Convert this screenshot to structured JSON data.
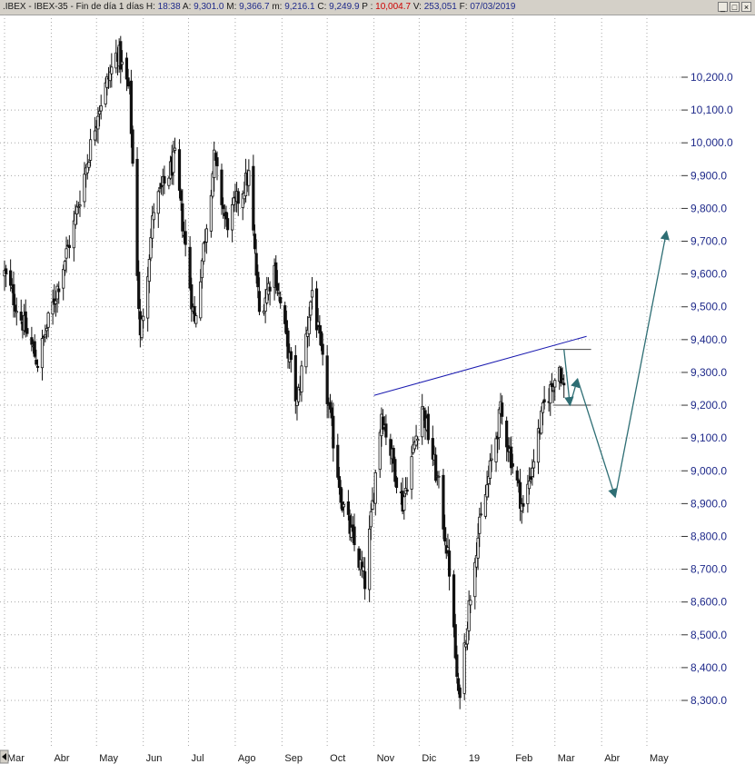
{
  "header": {
    "symbol": ".IBEX - IBEX-35 - Fin de día 1 días",
    "fields": [
      {
        "label": "H:",
        "value": "18:38"
      },
      {
        "label": "A:",
        "value": "9,301.0"
      },
      {
        "label": "M:",
        "value": "9,366.7"
      },
      {
        "label": "m:",
        "value": "9,216.1"
      },
      {
        "label": "C:",
        "value": "9,249.9"
      },
      {
        "label": "P :",
        "value": "10,004.7"
      },
      {
        "label": "V:",
        "value": "253,051"
      },
      {
        "label": "F:",
        "value": "07/03/2019"
      }
    ],
    "window_buttons": [
      "_",
      "□",
      "×"
    ]
  },
  "chart_data": {
    "type": "candlestick",
    "title": "",
    "y_axis": {
      "position": "right",
      "range": [
        8230,
        10350
      ],
      "ticks": [
        "8,300.0",
        "8,400.0",
        "8,500.0",
        "8,600.0",
        "8,700.0",
        "8,800.0",
        "8,900.0",
        "9,000.0",
        "9,100.0",
        "9,200.0",
        "9,300.0",
        "9,400.0",
        "9,500.0",
        "9,600.0",
        "9,700.0",
        "9,800.0",
        "9,900.0",
        "10,000.0",
        "10,100.0",
        "10,200.0"
      ]
    },
    "x_axis": {
      "labels": [
        "Mar",
        "Abr",
        "May",
        "Jun",
        "Jul",
        "Ago",
        "Sep",
        "Oct",
        "Nov",
        "Dic",
        "19",
        "Feb",
        "Mar",
        "Abr",
        "May"
      ]
    },
    "grid": true,
    "legend": "none",
    "candle_color": "#111111",
    "key_points": [
      {
        "date": "2018-03-01",
        "close": 9600
      },
      {
        "date": "2018-03-23",
        "close": 9330
      },
      {
        "date": "2018-04-16",
        "close": 9750
      },
      {
        "date": "2018-05-02",
        "close": 10100
      },
      {
        "date": "2018-05-15",
        "close": 10280
      },
      {
        "date": "2018-05-23",
        "close": 10150
      },
      {
        "date": "2018-05-30",
        "close": 9400
      },
      {
        "date": "2018-06-08",
        "close": 9800
      },
      {
        "date": "2018-06-22",
        "close": 9950
      },
      {
        "date": "2018-07-05",
        "close": 9450
      },
      {
        "date": "2018-07-18",
        "close": 9950
      },
      {
        "date": "2018-07-26",
        "close": 9750
      },
      {
        "date": "2018-08-10",
        "close": 9900
      },
      {
        "date": "2018-08-17",
        "close": 9480
      },
      {
        "date": "2018-08-27",
        "close": 9620
      },
      {
        "date": "2018-09-11",
        "close": 9200
      },
      {
        "date": "2018-09-21",
        "close": 9550
      },
      {
        "date": "2018-10-11",
        "close": 8900
      },
      {
        "date": "2018-10-26",
        "close": 8660
      },
      {
        "date": "2018-11-06",
        "close": 9180
      },
      {
        "date": "2018-11-20",
        "close": 8900
      },
      {
        "date": "2018-12-03",
        "close": 9200
      },
      {
        "date": "2018-12-14",
        "close": 8950
      },
      {
        "date": "2018-12-21",
        "close": 8700
      },
      {
        "date": "2018-12-27",
        "close": 8300
      },
      {
        "date": "2019-01-07",
        "close": 8750
      },
      {
        "date": "2019-01-24",
        "close": 9180
      },
      {
        "date": "2019-02-08",
        "close": 8880
      },
      {
        "date": "2019-02-22",
        "close": 9200
      },
      {
        "date": "2019-03-04",
        "close": 9320
      },
      {
        "date": "2019-03-07",
        "close": 9249.9
      }
    ],
    "annotations": {
      "trendline": {
        "from": {
          "date": "2018-11-01",
          "value": 9230
        },
        "to": {
          "date": "2019-03-22",
          "value": 9410
        },
        "color": "#1a1ab0"
      },
      "horizontal_lines": [
        {
          "from_date": "2019-03-01",
          "to_date": "2019-03-25",
          "value": 9370,
          "color": "#444444"
        },
        {
          "from_date": "2019-02-28",
          "to_date": "2019-03-25",
          "value": 9200,
          "color": "#444444"
        }
      ],
      "projection": {
        "color": "#2e6e74",
        "points": [
          {
            "date": "2019-03-07",
            "value": 9370
          },
          {
            "date": "2019-03-11",
            "value": 9200
          },
          {
            "date": "2019-03-16",
            "value": 9280
          },
          {
            "date": "2019-04-10",
            "value": 8920
          },
          {
            "date": "2019-05-14",
            "value": 9730
          }
        ]
      }
    }
  }
}
